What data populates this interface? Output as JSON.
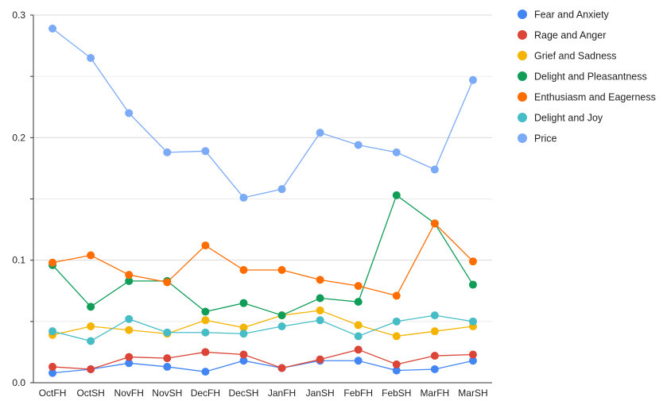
{
  "chart_data": {
    "type": "line",
    "title": "",
    "xlabel": "",
    "ylabel": "",
    "categories": [
      "OctFH",
      "OctSH",
      "NovFH",
      "NovSH",
      "DecFH",
      "DecSH",
      "JanFH",
      "JanSH",
      "FebFH",
      "FebSH",
      "MarFH",
      "MarSH"
    ],
    "ylim": [
      0,
      0.3
    ],
    "yticks": [
      0.0,
      0.1,
      0.2,
      0.3
    ],
    "ytick_labels": [
      "0.0",
      "0.1",
      "0.2",
      "0.3"
    ],
    "grid": true,
    "legend_position": "right",
    "series": [
      {
        "name": "Fear and Anxiety",
        "color": "#4285f4",
        "values": [
          0.008,
          0.011,
          0.016,
          0.013,
          0.009,
          0.018,
          0.012,
          0.018,
          0.018,
          0.01,
          0.011,
          0.018
        ]
      },
      {
        "name": "Rage and Anger",
        "color": "#db4437",
        "values": [
          0.013,
          0.011,
          0.021,
          0.02,
          0.025,
          0.023,
          0.012,
          0.019,
          0.027,
          0.015,
          0.022,
          0.023
        ]
      },
      {
        "name": "Grief and Sadness",
        "color": "#f4b400",
        "values": [
          0.039,
          0.046,
          0.043,
          0.04,
          0.051,
          0.045,
          0.055,
          0.059,
          0.047,
          0.038,
          0.042,
          0.046
        ]
      },
      {
        "name": "Delight and Pleasantness",
        "color": "#0f9d58",
        "values": [
          0.096,
          0.062,
          0.083,
          0.083,
          0.058,
          0.065,
          0.055,
          0.069,
          0.066,
          0.153,
          0.13,
          0.08
        ]
      },
      {
        "name": "Enthusiasm and Eagerness",
        "color": "#ff6d01",
        "values": [
          0.098,
          0.104,
          0.088,
          0.082,
          0.112,
          0.092,
          0.092,
          0.084,
          0.079,
          0.071,
          0.13,
          0.099
        ]
      },
      {
        "name": "Delight and Joy",
        "color": "#46bdc6",
        "values": [
          0.042,
          0.034,
          0.052,
          0.041,
          0.041,
          0.04,
          0.046,
          0.051,
          0.038,
          0.05,
          0.055,
          0.05
        ]
      },
      {
        "name": "Price",
        "color": "#7baaf7",
        "values": [
          0.289,
          0.265,
          0.22,
          0.188,
          0.189,
          0.151,
          0.158,
          0.204,
          0.194,
          0.188,
          0.174,
          0.247
        ]
      }
    ]
  }
}
